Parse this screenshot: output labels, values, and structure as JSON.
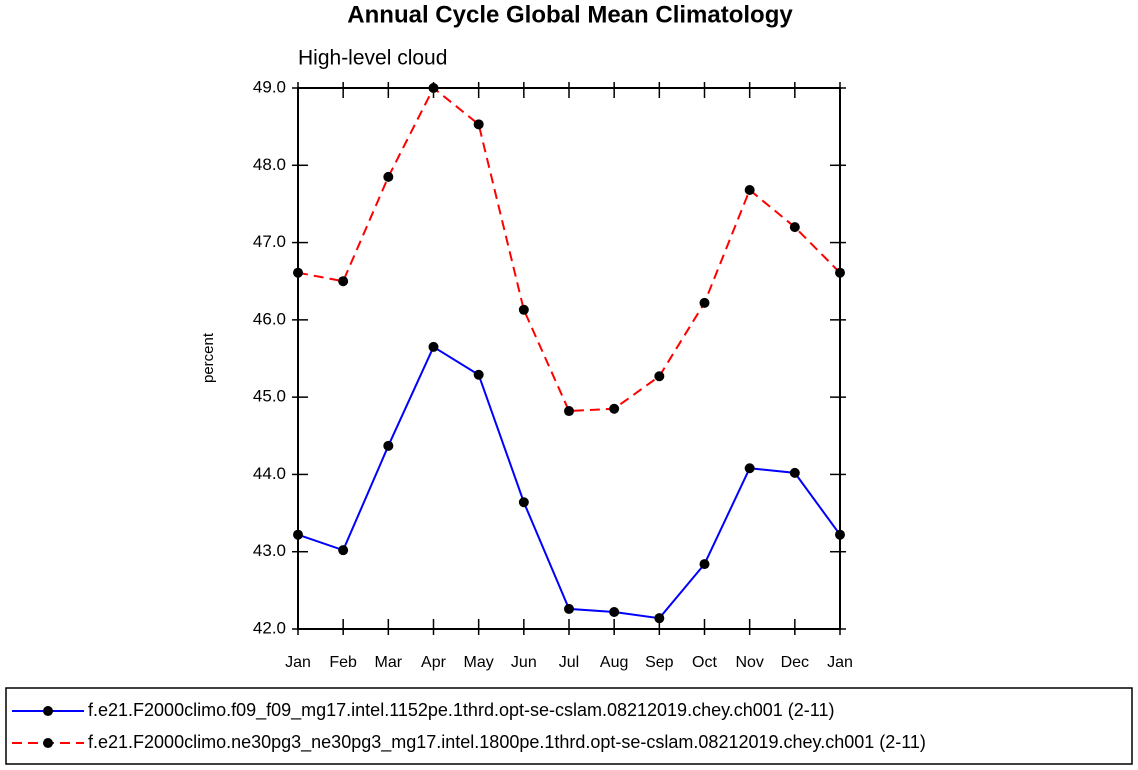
{
  "chart_data": {
    "type": "line",
    "title": "Annual Cycle Global Mean Climatology",
    "subtitle": "High-level cloud",
    "y_label": "percent",
    "categories": [
      "Jan",
      "Feb",
      "Mar",
      "Apr",
      "May",
      "Jun",
      "Jul",
      "Aug",
      "Sep",
      "Oct",
      "Nov",
      "Dec",
      "Jan"
    ],
    "series": [
      {
        "name": "f.e21.F2000climo.f09_f09_mg17.intel.1152pe.1thrd.opt-se-cslam.08212019.chey.ch001 (2-11)",
        "color": "#0000ff",
        "line_style": "solid",
        "marker_color": "#000000",
        "values": [
          43.22,
          43.02,
          44.37,
          45.65,
          45.29,
          43.64,
          42.26,
          42.22,
          42.14,
          42.84,
          44.08,
          44.02,
          43.22
        ]
      },
      {
        "name": "f.e21.F2000climo.ne30pg3_ne30pg3_mg17.intel.1800pe.1thrd.opt-se-cslam.08212019.chey.ch001 (2-11)",
        "color": "#ff0000",
        "line_style": "dashed",
        "marker_color": "#000000",
        "values": [
          46.61,
          46.5,
          47.85,
          49.0,
          48.53,
          46.13,
          44.82,
          44.85,
          45.27,
          46.22,
          47.68,
          47.2,
          46.61
        ]
      }
    ],
    "ylim": [
      42,
      49
    ],
    "yticks": [
      {
        "value": 42,
        "label": "42.0"
      },
      {
        "value": 43,
        "label": "43.0"
      },
      {
        "value": 44,
        "label": "44.0"
      },
      {
        "value": 45,
        "label": "45.0"
      },
      {
        "value": 46,
        "label": "46.0"
      },
      {
        "value": 47,
        "label": "47.0"
      },
      {
        "value": 48,
        "label": "48.0"
      },
      {
        "value": 49,
        "label": "49.0"
      }
    ]
  }
}
